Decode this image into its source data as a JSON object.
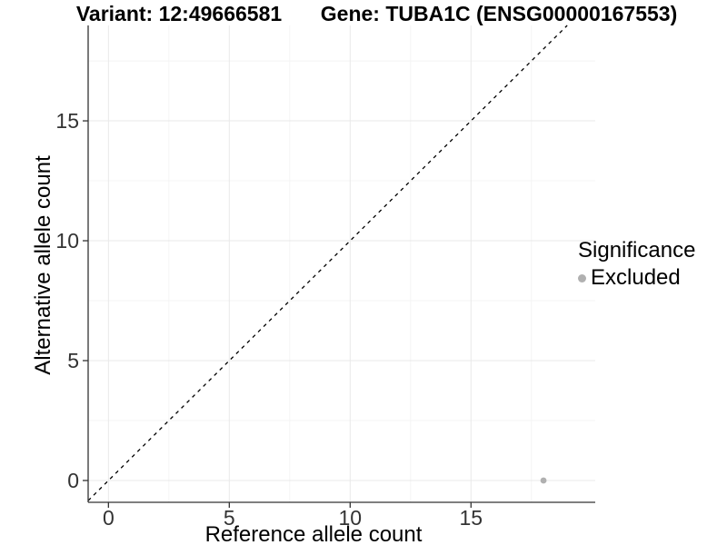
{
  "titles": {
    "variant": "Variant: 12:49666581",
    "gene": "Gene: TUBA1C (ENSG00000167553)"
  },
  "legend": {
    "title": "Significance",
    "items": [
      {
        "label": "Excluded",
        "color": "#b0b0b0"
      }
    ]
  },
  "chart_data": {
    "type": "scatter",
    "title": "Variant: 12:49666581 — Gene: TUBA1C (ENSG00000167553)",
    "xlabel": "Reference allele count",
    "ylabel": "Alternative allele count",
    "xlim": [
      -0.84,
      20.14
    ],
    "ylim": [
      -0.91,
      18.98
    ],
    "x_major_ticks": [
      0,
      5,
      10,
      15
    ],
    "y_major_ticks": [
      0,
      5,
      10,
      15
    ],
    "x_minor_ticks": [
      2.5,
      7.5,
      12.5,
      17.5
    ],
    "y_minor_ticks": [
      2.5,
      7.5,
      12.5,
      17.5
    ],
    "grid": true,
    "legend_position": "right",
    "series": [
      {
        "name": "Excluded",
        "color": "#b0b0b0",
        "points": [
          {
            "x": 18,
            "y": 0
          }
        ]
      }
    ],
    "reference_line": {
      "kind": "identity",
      "equation": "y = x",
      "style": "dashed",
      "color": "#000000"
    },
    "colors": {
      "grid_major": "#e9e9e9",
      "grid_minor": "#f4f4f4",
      "axis": "#333333",
      "tick_label": "#333333",
      "background": "#ffffff"
    }
  }
}
